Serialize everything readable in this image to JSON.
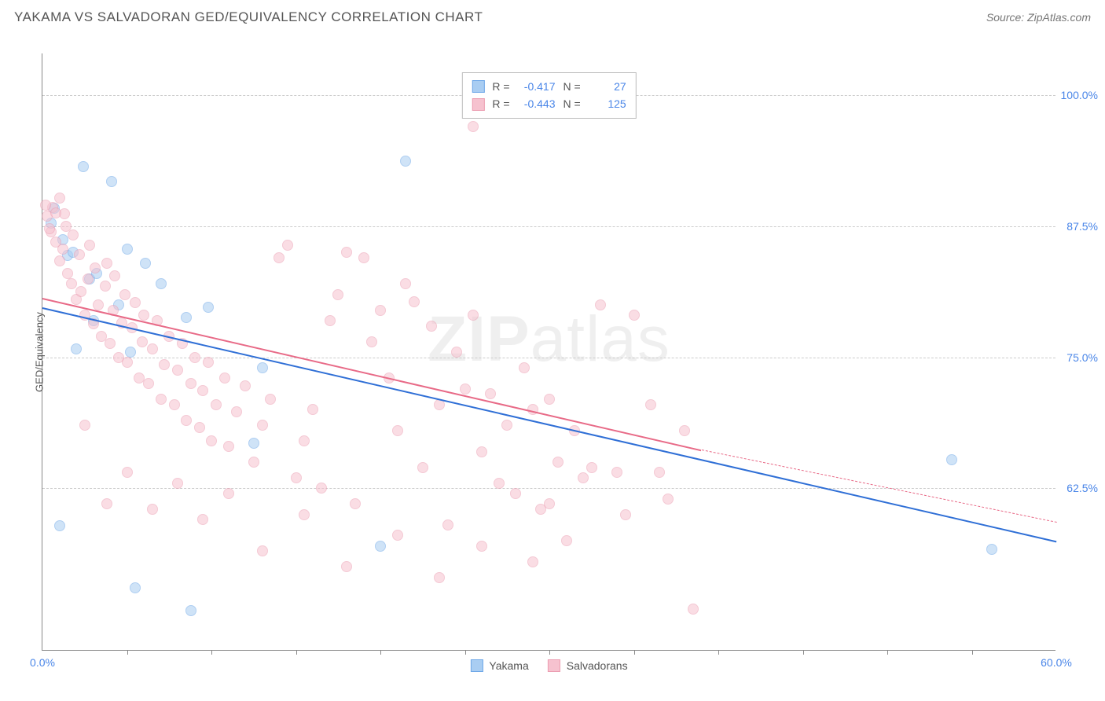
{
  "header": {
    "title": "YAKAMA VS SALVADORAN GED/EQUIVALENCY CORRELATION CHART",
    "source": "Source: ZipAtlas.com"
  },
  "chart": {
    "type": "scatter",
    "ylabel": "GED/Equivalency",
    "xlim": [
      0,
      60
    ],
    "ylim": [
      47,
      104
    ],
    "background_color": "#ffffff",
    "grid_color": "#cccccc",
    "axis_color": "#888888",
    "yticks": [
      {
        "value": 62.5,
        "label": "62.5%"
      },
      {
        "value": 75.0,
        "label": "75.0%"
      },
      {
        "value": 87.5,
        "label": "87.5%"
      },
      {
        "value": 100.0,
        "label": "100.0%"
      }
    ],
    "xticks_major": [
      0,
      60
    ],
    "xtick_labels": [
      {
        "value": 0,
        "label": "0.0%"
      },
      {
        "value": 60,
        "label": "60.0%"
      }
    ],
    "xticks_minor": [
      5,
      10,
      15,
      20,
      25,
      30,
      35,
      40,
      45,
      50,
      55
    ],
    "point_radius": 7,
    "point_opacity": 0.55,
    "series": [
      {
        "name": "Yakama",
        "fill_color": "#a9cdf2",
        "stroke_color": "#6fa8e8",
        "swatch_fill": "#a9cdf2",
        "swatch_border": "#6fa8e8",
        "trend_color": "#2f6fd6",
        "R": "-0.417",
        "N": "27",
        "trend": {
          "x1": 0,
          "y1": 79.8,
          "x2": 60,
          "y2": 57.5,
          "dash_from_x": 60
        },
        "points": [
          [
            0.5,
            87.8
          ],
          [
            0.7,
            89.2
          ],
          [
            1.2,
            86.2
          ],
          [
            1.5,
            84.7
          ],
          [
            1.8,
            85.0
          ],
          [
            2.0,
            75.8
          ],
          [
            2.4,
            93.2
          ],
          [
            2.8,
            82.5
          ],
          [
            3.0,
            78.5
          ],
          [
            3.2,
            83.0
          ],
          [
            4.1,
            91.8
          ],
          [
            4.5,
            80.0
          ],
          [
            5.0,
            85.3
          ],
          [
            5.2,
            75.5
          ],
          [
            6.1,
            84.0
          ],
          [
            7.0,
            82.0
          ],
          [
            8.5,
            78.8
          ],
          [
            9.8,
            79.8
          ],
          [
            12.5,
            66.8
          ],
          [
            13.0,
            74.0
          ],
          [
            20.0,
            57.0
          ],
          [
            21.5,
            93.7
          ],
          [
            1.0,
            58.9
          ],
          [
            5.5,
            53.0
          ],
          [
            8.8,
            50.8
          ],
          [
            53.8,
            65.2
          ],
          [
            56.2,
            56.7
          ]
        ]
      },
      {
        "name": "Salvadorans",
        "fill_color": "#f6c2cf",
        "stroke_color": "#ec9eb2",
        "swatch_fill": "#f6c2cf",
        "swatch_border": "#ec9eb2",
        "trend_color": "#e86a87",
        "R": "-0.443",
        "N": "125",
        "trend": {
          "x1": 0,
          "y1": 80.7,
          "x2": 39,
          "y2": 66.2,
          "dash_from_x": 39,
          "dash_x2": 60,
          "dash_y2": 59.3
        },
        "points": [
          [
            0.3,
            88.5
          ],
          [
            0.5,
            87.0
          ],
          [
            0.6,
            89.3
          ],
          [
            0.8,
            86.0
          ],
          [
            1.0,
            84.2
          ],
          [
            1.2,
            85.3
          ],
          [
            1.3,
            88.7
          ],
          [
            1.5,
            83.0
          ],
          [
            1.7,
            82.0
          ],
          [
            1.8,
            86.7
          ],
          [
            2.0,
            80.5
          ],
          [
            2.2,
            84.8
          ],
          [
            2.3,
            81.3
          ],
          [
            2.5,
            79.0
          ],
          [
            2.7,
            82.5
          ],
          [
            2.8,
            85.7
          ],
          [
            3.0,
            78.2
          ],
          [
            3.1,
            83.5
          ],
          [
            3.3,
            80.0
          ],
          [
            3.5,
            77.0
          ],
          [
            3.7,
            81.8
          ],
          [
            3.8,
            84.0
          ],
          [
            4.0,
            76.3
          ],
          [
            4.2,
            79.5
          ],
          [
            4.3,
            82.8
          ],
          [
            4.5,
            75.0
          ],
          [
            4.7,
            78.3
          ],
          [
            4.9,
            81.0
          ],
          [
            5.0,
            74.5
          ],
          [
            5.3,
            77.8
          ],
          [
            5.5,
            80.2
          ],
          [
            5.7,
            73.0
          ],
          [
            5.9,
            76.5
          ],
          [
            6.0,
            79.0
          ],
          [
            6.3,
            72.5
          ],
          [
            6.5,
            75.8
          ],
          [
            6.8,
            78.5
          ],
          [
            7.0,
            71.0
          ],
          [
            7.2,
            74.3
          ],
          [
            7.5,
            77.0
          ],
          [
            7.8,
            70.5
          ],
          [
            8.0,
            73.8
          ],
          [
            8.3,
            76.3
          ],
          [
            8.5,
            69.0
          ],
          [
            8.8,
            72.5
          ],
          [
            9.0,
            75.0
          ],
          [
            9.3,
            68.3
          ],
          [
            9.5,
            71.8
          ],
          [
            9.8,
            74.5
          ],
          [
            10.0,
            67.0
          ],
          [
            10.3,
            70.5
          ],
          [
            10.8,
            73.0
          ],
          [
            11.0,
            66.5
          ],
          [
            11.5,
            69.8
          ],
          [
            12.0,
            72.3
          ],
          [
            12.5,
            65.0
          ],
          [
            13.0,
            68.5
          ],
          [
            13.5,
            71.0
          ],
          [
            14.0,
            84.5
          ],
          [
            14.5,
            85.7
          ],
          [
            15.0,
            63.5
          ],
          [
            15.5,
            67.0
          ],
          [
            16.0,
            70.0
          ],
          [
            16.5,
            62.5
          ],
          [
            17.0,
            78.5
          ],
          [
            17.5,
            81.0
          ],
          [
            18.0,
            85.0
          ],
          [
            18.5,
            61.0
          ],
          [
            19.0,
            84.5
          ],
          [
            19.5,
            76.5
          ],
          [
            20.0,
            79.5
          ],
          [
            20.5,
            73.0
          ],
          [
            21.0,
            68.0
          ],
          [
            21.5,
            82.0
          ],
          [
            22.0,
            80.3
          ],
          [
            22.5,
            64.5
          ],
          [
            23.0,
            78.0
          ],
          [
            23.5,
            70.5
          ],
          [
            24.0,
            59.0
          ],
          [
            24.5,
            75.5
          ],
          [
            25.0,
            72.0
          ],
          [
            25.5,
            79.0
          ],
          [
            26.0,
            66.0
          ],
          [
            26.5,
            71.5
          ],
          [
            27.0,
            63.0
          ],
          [
            27.5,
            68.5
          ],
          [
            28.0,
            62.0
          ],
          [
            28.5,
            74.0
          ],
          [
            29.0,
            70.0
          ],
          [
            29.5,
            60.5
          ],
          [
            30.0,
            71.0
          ],
          [
            30.5,
            65.0
          ],
          [
            31.0,
            57.5
          ],
          [
            31.5,
            68.0
          ],
          [
            32.0,
            63.5
          ],
          [
            33.0,
            80.0
          ],
          [
            34.0,
            64.0
          ],
          [
            35.0,
            79.0
          ],
          [
            36.0,
            70.5
          ],
          [
            37.0,
            61.5
          ],
          [
            38.0,
            68.0
          ],
          [
            38.5,
            51.0
          ],
          [
            2.5,
            68.5
          ],
          [
            3.8,
            61.0
          ],
          [
            5.0,
            64.0
          ],
          [
            6.5,
            60.5
          ],
          [
            8.0,
            63.0
          ],
          [
            9.5,
            59.5
          ],
          [
            11.0,
            62.0
          ],
          [
            13.0,
            56.5
          ],
          [
            15.5,
            60.0
          ],
          [
            18.0,
            55.0
          ],
          [
            21.0,
            58.0
          ],
          [
            23.5,
            54.0
          ],
          [
            26.0,
            57.0
          ],
          [
            29.0,
            55.5
          ],
          [
            30.0,
            61.0
          ],
          [
            32.5,
            64.5
          ],
          [
            34.5,
            60.0
          ],
          [
            25.5,
            97.0
          ],
          [
            0.2,
            89.5
          ],
          [
            1.0,
            90.2
          ],
          [
            0.4,
            87.3
          ],
          [
            0.8,
            88.8
          ],
          [
            1.4,
            87.5
          ],
          [
            36.5,
            64.0
          ]
        ]
      }
    ],
    "watermark": "ZIPatlas",
    "bottom_legend": [
      {
        "label": "Yakama",
        "fill": "#a9cdf2",
        "border": "#6fa8e8"
      },
      {
        "label": "Salvadorans",
        "fill": "#f6c2cf",
        "border": "#ec9eb2"
      }
    ]
  }
}
